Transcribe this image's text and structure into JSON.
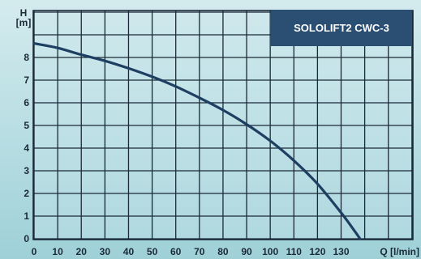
{
  "chart_data": {
    "type": "line",
    "title": "SOLOLIFT2 CWC-3",
    "xlabel": "Q [l/min]",
    "ylabel_top": "H",
    "ylabel_unit": "[m]",
    "xlim": [
      0,
      140
    ],
    "ylim": [
      0,
      9.7
    ],
    "x_ticks": [
      "0",
      "10",
      "20",
      "30",
      "40",
      "50",
      "60",
      "70",
      "80",
      "90",
      "100",
      "110",
      "120",
      "130"
    ],
    "y_ticks": [
      "0",
      "1",
      "2",
      "3",
      "4",
      "5",
      "6",
      "7",
      "8"
    ],
    "grid": true,
    "series": [
      {
        "x": [
          0,
          10,
          20,
          30,
          40,
          50,
          60,
          70,
          80,
          90,
          100,
          110,
          120,
          130,
          136,
          138
        ],
        "y": [
          8.62,
          8.42,
          8.12,
          7.85,
          7.52,
          7.15,
          6.72,
          6.22,
          5.68,
          5.05,
          4.32,
          3.45,
          2.42,
          1.15,
          0.3,
          0.0
        ]
      }
    ]
  },
  "colors": {
    "background_top": "#d4ebee",
    "background_bottom": "#9fd0d8",
    "grid": "#1b2a38",
    "curve": "#1e3f62",
    "title_box": "#2b4e73",
    "text": "#1b2a38"
  }
}
